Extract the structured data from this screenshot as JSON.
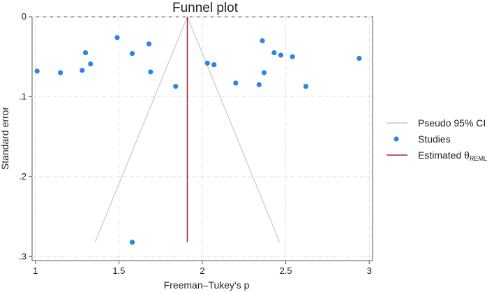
{
  "chart_data": {
    "type": "scatter",
    "title": "Funnel plot",
    "xlabel": "Freeman–Tukey's p",
    "ylabel": "Standard error",
    "xlim": [
      0.98,
      3.02
    ],
    "ylim": [
      0,
      0.305
    ],
    "y_reversed": true,
    "grid": true,
    "x_ticks": [
      1,
      1.5,
      2,
      2.5,
      3
    ],
    "x_tick_labels": [
      "1",
      "1.5",
      "2",
      "2.5",
      "3"
    ],
    "y_ticks": [
      0,
      0.1,
      0.2,
      0.3
    ],
    "y_tick_labels": [
      "0",
      ".1",
      ".2",
      ".3"
    ],
    "estimate": 1.91,
    "estimate_se_max": 0.282,
    "pseudo_ci_z": 1.96,
    "legend_position": "right",
    "legend": {
      "ci": "Pseudo 95% CI",
      "studies": "Studies",
      "estimated_prefix": "Estimated θ",
      "estimated_sub": "REML"
    },
    "colors": {
      "studies": "#2a86e0",
      "estimate": "#a0223a",
      "ci": "#c8c8c8",
      "grid": "#e2e2e2"
    },
    "series": [
      {
        "name": "Studies",
        "x": [
          1.01,
          1.15,
          1.28,
          1.3,
          1.33,
          1.49,
          1.58,
          1.58,
          1.68,
          1.69,
          1.84,
          2.03,
          2.07,
          2.2,
          2.34,
          2.36,
          2.37,
          2.43,
          2.47,
          2.54,
          2.62,
          2.94
        ],
        "y": [
          0.068,
          0.07,
          0.067,
          0.045,
          0.059,
          0.026,
          0.282,
          0.046,
          0.034,
          0.069,
          0.087,
          0.058,
          0.06,
          0.083,
          0.085,
          0.03,
          0.07,
          0.045,
          0.048,
          0.05,
          0.087,
          0.052
        ]
      }
    ]
  }
}
